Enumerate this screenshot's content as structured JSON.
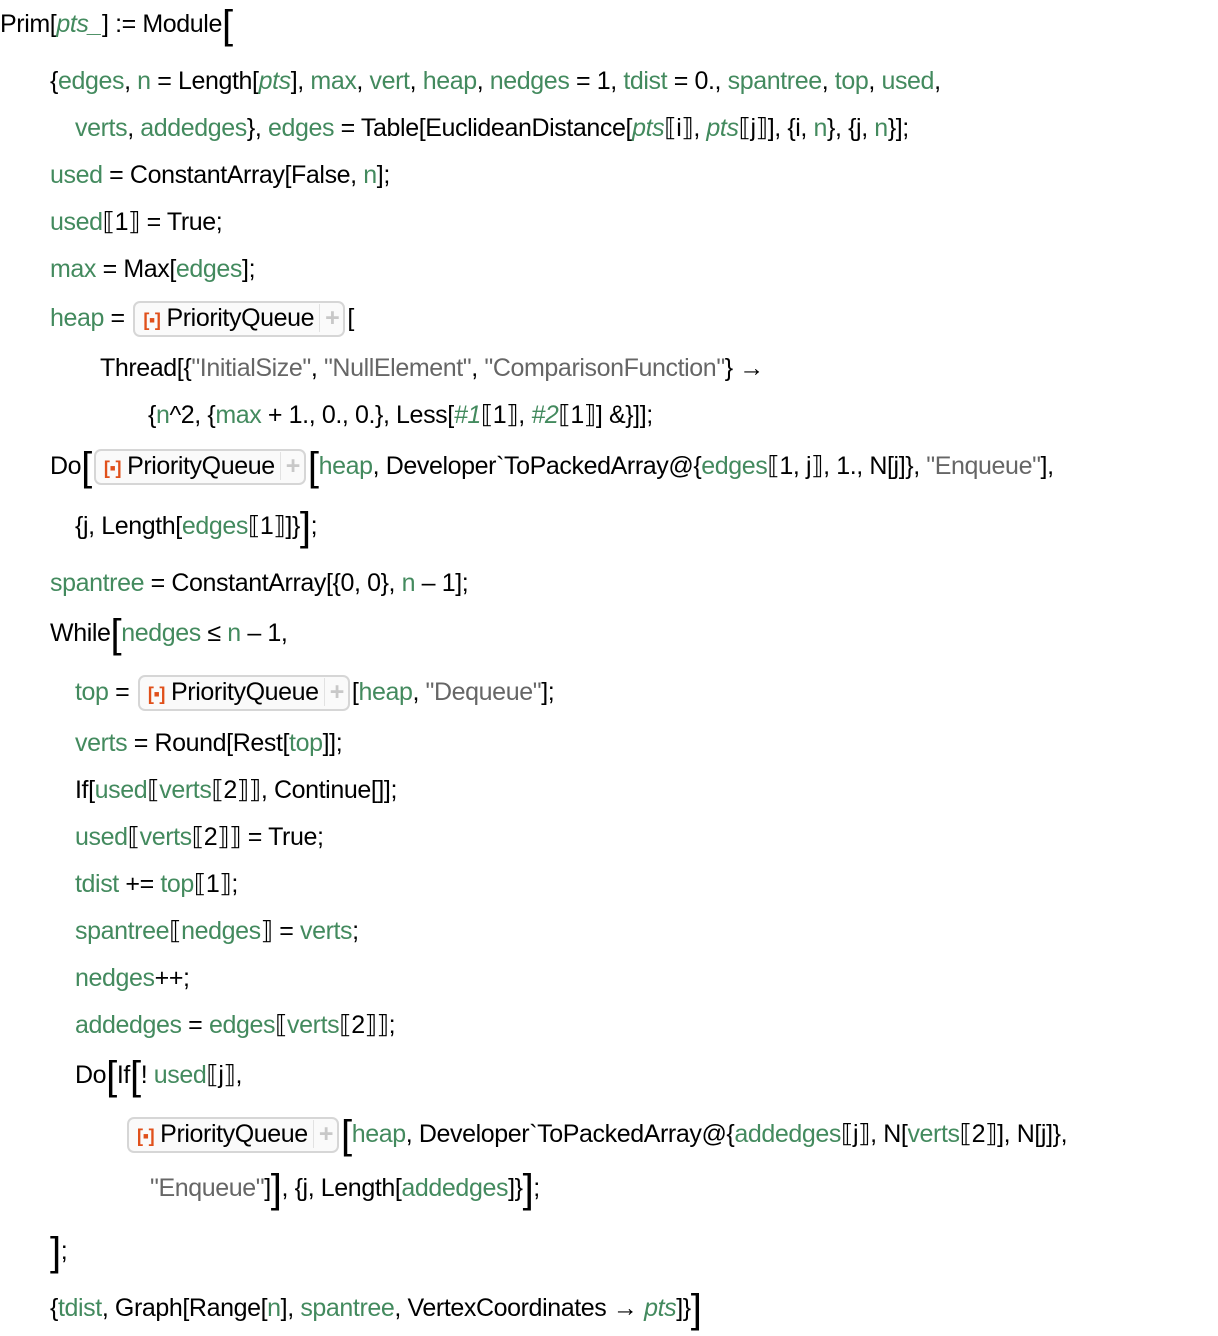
{
  "pq_label": "PriorityQueue",
  "pq_icon": "[▪]",
  "pq_plus": "+",
  "colors": {
    "variable": "#438a5e",
    "string": "#666666",
    "symbol_box_icon": "#e0501b"
  },
  "lines": [
    [
      [
        "Prim[",
        "k"
      ],
      [
        "pts_",
        "i"
      ],
      [
        "] := Module",
        "k"
      ],
      [
        "[",
        "B"
      ]
    ],
    [
      [
        "{",
        "k"
      ],
      [
        "edges",
        "v"
      ],
      [
        ", ",
        "k"
      ],
      [
        "n",
        "v"
      ],
      [
        " = Length[",
        "k"
      ],
      [
        "pts",
        "i"
      ],
      [
        "], ",
        "k"
      ],
      [
        "max",
        "v"
      ],
      [
        ", ",
        "k"
      ],
      [
        "vert",
        "v"
      ],
      [
        ", ",
        "k"
      ],
      [
        "heap",
        "v"
      ],
      [
        ", ",
        "k"
      ],
      [
        "nedges",
        "v"
      ],
      [
        " = 1, ",
        "k"
      ],
      [
        "tdist",
        "v"
      ],
      [
        " = 0., ",
        "k"
      ],
      [
        "spantree",
        "v"
      ],
      [
        ", ",
        "k"
      ],
      [
        "top",
        "v"
      ],
      [
        ", ",
        "k"
      ],
      [
        "used",
        "v"
      ],
      [
        ",",
        "k"
      ]
    ],
    [
      [
        "verts",
        "v"
      ],
      [
        ", ",
        "k"
      ],
      [
        "addedges",
        "v"
      ],
      [
        "}, ",
        "k"
      ],
      [
        "edges",
        "v"
      ],
      [
        " = Table[EuclideanDistance[",
        "k"
      ],
      [
        "pts",
        "i"
      ],
      [
        "⟦i⟧, ",
        "k"
      ],
      [
        "pts",
        "i"
      ],
      [
        "⟦j⟧], {i, ",
        "k"
      ],
      [
        "n",
        "v"
      ],
      [
        "}, {j, ",
        "k"
      ],
      [
        "n",
        "v"
      ],
      [
        "}];",
        "k"
      ]
    ],
    [
      [
        "used",
        "v"
      ],
      [
        " = ConstantArray[False, ",
        "k"
      ],
      [
        "n",
        "v"
      ],
      [
        "];",
        "k"
      ]
    ],
    [
      [
        "used",
        "v"
      ],
      [
        "⟦1⟧ = True;",
        "k"
      ]
    ],
    [
      [
        "max",
        "v"
      ],
      [
        " = Max[",
        "k"
      ],
      [
        "edges",
        "v"
      ],
      [
        "];",
        "k"
      ]
    ],
    [
      [
        "heap",
        "v"
      ],
      [
        " = ",
        "k"
      ],
      [
        "PQ",
        "pq"
      ],
      [
        "[",
        "k"
      ]
    ],
    [
      [
        "Thread[{",
        "k"
      ],
      [
        "\"InitialSize\"",
        "s"
      ],
      [
        ", ",
        "k"
      ],
      [
        "\"NullElement\"",
        "s"
      ],
      [
        ", ",
        "k"
      ],
      [
        "\"ComparisonFunction\"",
        "s"
      ],
      [
        "} →",
        "k"
      ]
    ],
    [
      [
        "{",
        "k"
      ],
      [
        "n",
        "v"
      ],
      [
        "^2, {",
        "k"
      ],
      [
        "max",
        "v"
      ],
      [
        " + 1., 0., 0.}, Less[",
        "k"
      ],
      [
        "#1",
        "i"
      ],
      [
        "⟦1⟧, ",
        "k"
      ],
      [
        "#2",
        "i"
      ],
      [
        "⟦1⟧] &}]];",
        "k"
      ]
    ],
    [
      [
        "Do",
        "k"
      ],
      [
        "[",
        "B"
      ],
      [
        "PQ",
        "pq"
      ],
      [
        "[",
        "B"
      ],
      [
        "heap",
        "v"
      ],
      [
        ", Developer`ToPackedArray@{",
        "k"
      ],
      [
        "edges",
        "v"
      ],
      [
        "⟦1, j⟧, 1., N[j]}, ",
        "k"
      ],
      [
        "\"Enqueue\"",
        "s"
      ],
      [
        "],",
        "k"
      ]
    ],
    [
      [
        "{j, Length[",
        "k"
      ],
      [
        "edges",
        "v"
      ],
      [
        "⟦1⟧]}",
        "k"
      ],
      [
        "]",
        "B"
      ],
      [
        ";",
        "k"
      ]
    ],
    [
      [
        "spantree",
        "v"
      ],
      [
        " = ConstantArray[{0, 0}, ",
        "k"
      ],
      [
        "n",
        "v"
      ],
      [
        " – 1];",
        "k"
      ]
    ],
    [
      [
        "While",
        "k"
      ],
      [
        "[",
        "B"
      ],
      [
        "nedges",
        "v"
      ],
      [
        " ≤ ",
        "k"
      ],
      [
        "n",
        "v"
      ],
      [
        " – 1,",
        "k"
      ]
    ],
    [
      [
        "top",
        "v"
      ],
      [
        " = ",
        "k"
      ],
      [
        "PQ",
        "pq"
      ],
      [
        "[",
        "k"
      ],
      [
        "heap",
        "v"
      ],
      [
        ", ",
        "k"
      ],
      [
        "\"Dequeue\"",
        "s"
      ],
      [
        "];",
        "k"
      ]
    ],
    [
      [
        "verts",
        "v"
      ],
      [
        " = Round[Rest[",
        "k"
      ],
      [
        "top",
        "v"
      ],
      [
        "]];",
        "k"
      ]
    ],
    [
      [
        "If[",
        "k"
      ],
      [
        "used",
        "v"
      ],
      [
        "⟦",
        "k"
      ],
      [
        "verts",
        "v"
      ],
      [
        "⟦2⟧⟧, Continue[]];",
        "k"
      ]
    ],
    [
      [
        "used",
        "v"
      ],
      [
        "⟦",
        "k"
      ],
      [
        "verts",
        "v"
      ],
      [
        "⟦2⟧⟧ = True;",
        "k"
      ]
    ],
    [
      [
        "tdist",
        "v"
      ],
      [
        " += ",
        "k"
      ],
      [
        "top",
        "v"
      ],
      [
        "⟦1⟧;",
        "k"
      ]
    ],
    [
      [
        "spantree",
        "v"
      ],
      [
        "⟦",
        "k"
      ],
      [
        "nedges",
        "v"
      ],
      [
        "⟧ = ",
        "k"
      ],
      [
        "verts",
        "v"
      ],
      [
        ";",
        "k"
      ]
    ],
    [
      [
        "nedges",
        "v"
      ],
      [
        "++;",
        "k"
      ]
    ],
    [
      [
        "addedges",
        "v"
      ],
      [
        " = ",
        "k"
      ],
      [
        "edges",
        "v"
      ],
      [
        "⟦",
        "k"
      ],
      [
        "verts",
        "v"
      ],
      [
        "⟦2⟧⟧;",
        "k"
      ]
    ],
    [
      [
        "Do",
        "k"
      ],
      [
        "[",
        "B"
      ],
      [
        "If",
        "k"
      ],
      [
        "[",
        "B"
      ],
      [
        "! ",
        "k"
      ],
      [
        "used",
        "v"
      ],
      [
        "⟦j⟧,",
        "k"
      ]
    ],
    [
      [
        "PQ",
        "pq"
      ],
      [
        "[",
        "B"
      ],
      [
        "heap",
        "v"
      ],
      [
        ", Developer`ToPackedArray@{",
        "k"
      ],
      [
        "addedges",
        "v"
      ],
      [
        "⟦j⟧, N[",
        "k"
      ],
      [
        "verts",
        "v"
      ],
      [
        "⟦2⟧], N[j]},",
        "k"
      ]
    ],
    [
      [
        "\"Enqueue\"",
        "s"
      ],
      [
        "]",
        "k"
      ],
      [
        "]",
        "B"
      ],
      [
        ", {j, Length[",
        "k"
      ],
      [
        "addedges",
        "v"
      ],
      [
        "]}",
        "k"
      ],
      [
        "]",
        "B"
      ],
      [
        ";",
        "k"
      ]
    ],
    [
      [
        "]",
        "B"
      ],
      [
        ";",
        "k"
      ]
    ],
    [
      [
        "{",
        "k"
      ],
      [
        "tdist",
        "v"
      ],
      [
        ", Graph[Range[",
        "k"
      ],
      [
        "n",
        "v"
      ],
      [
        "], ",
        "k"
      ],
      [
        "spantree",
        "v"
      ],
      [
        ", VertexCoordinates → ",
        "k"
      ],
      [
        "pts",
        "i"
      ],
      [
        "]}",
        "k"
      ],
      [
        "]",
        "B"
      ]
    ]
  ]
}
